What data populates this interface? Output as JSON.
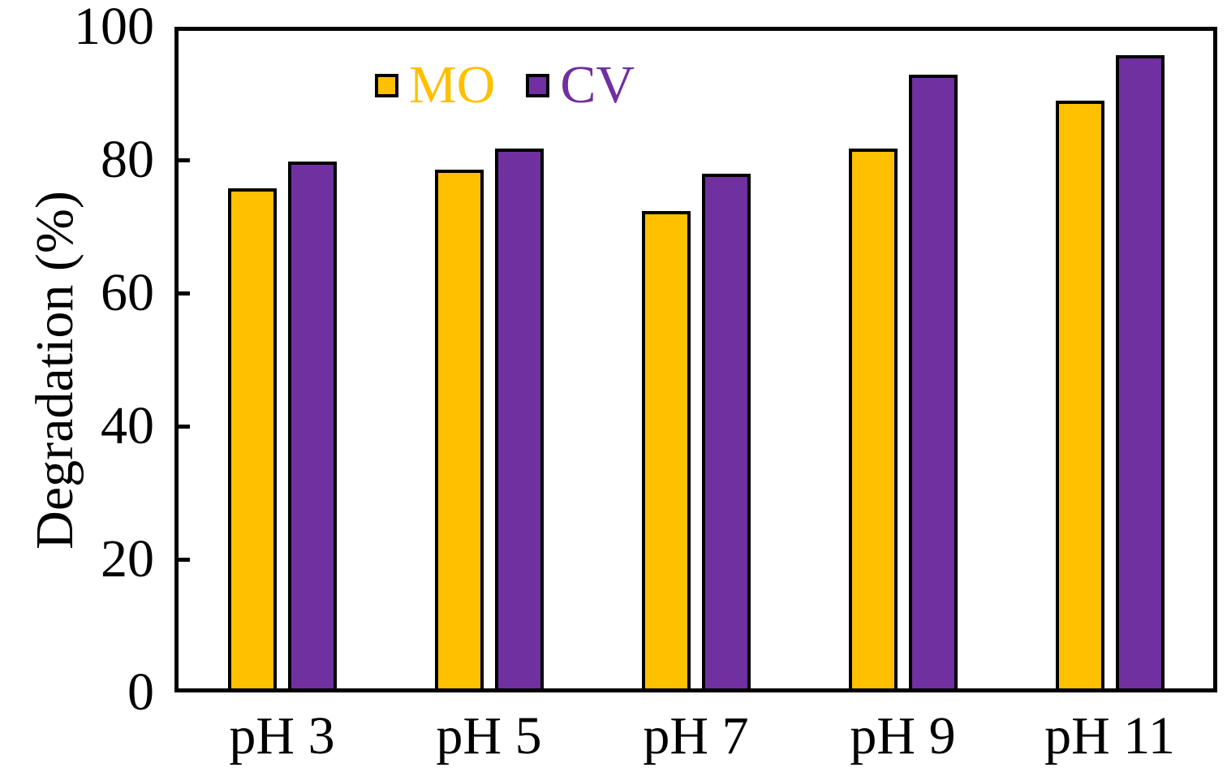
{
  "chart_data": {
    "type": "bar",
    "title": "",
    "xlabel": "",
    "ylabel": "Degradation (%)",
    "categories": [
      "pH 3",
      "pH 5",
      "pH 7",
      "pH 9",
      "pH 11"
    ],
    "series": [
      {
        "name": "MO",
        "color": "#FFC000",
        "values": [
          75.7,
          78.5,
          72.3,
          81.7,
          88.9
        ]
      },
      {
        "name": "CV",
        "color": "#7030A0",
        "values": [
          79.8,
          81.7,
          77.9,
          92.8,
          95.7
        ]
      }
    ],
    "ylim": [
      0,
      100
    ],
    "yticks": [
      0,
      20,
      40,
      60,
      80,
      100
    ],
    "grid": false,
    "legend_position": "top-center-inside",
    "axis_color": "#000000",
    "bar_border_color": "#000000",
    "background_color": "#ffffff"
  }
}
